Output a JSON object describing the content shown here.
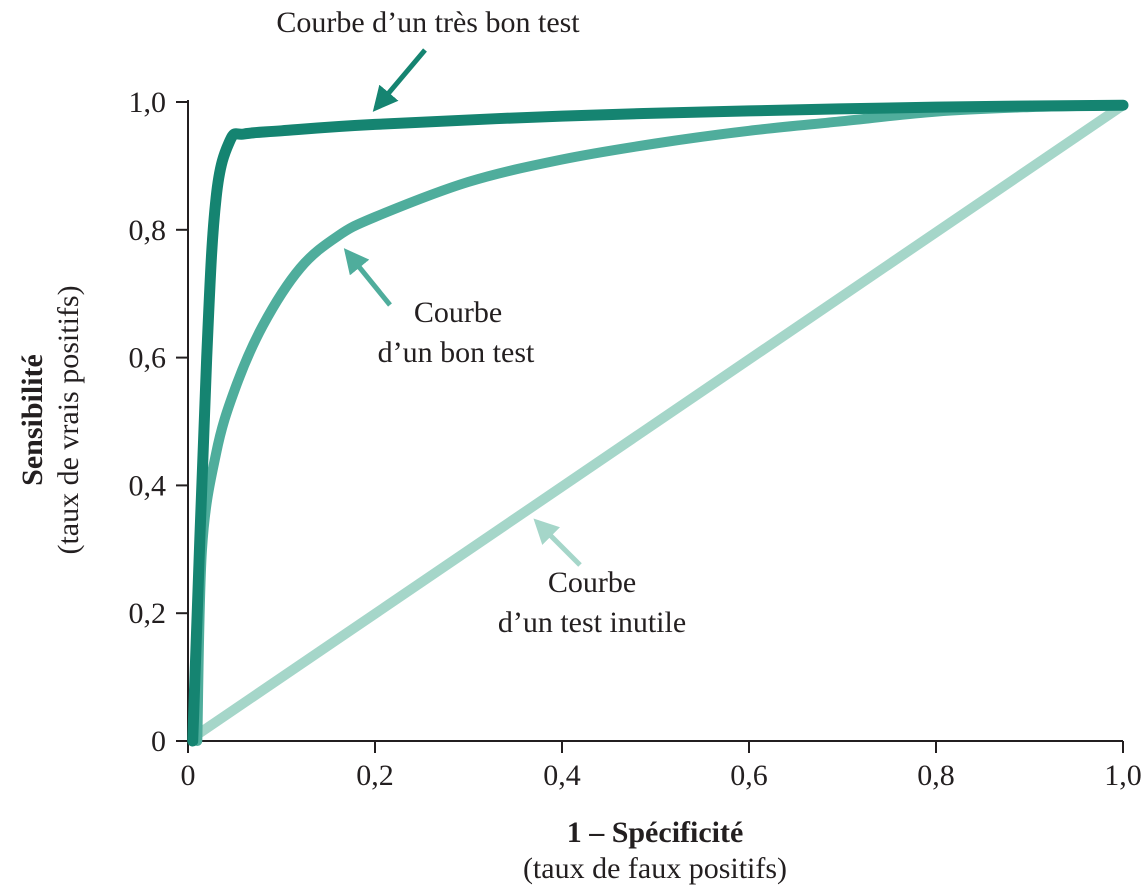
{
  "chart_data": {
    "type": "line",
    "xlabel": "1 – Spécificité",
    "xlabel_sub": "(taux de faux positifs)",
    "ylabel": "Sensibilité",
    "ylabel_sub": "(taux de vrais positifs)",
    "xlim": [
      0,
      1
    ],
    "ylim": [
      0,
      1
    ],
    "x_ticks": [
      {
        "value": 0,
        "label": "0"
      },
      {
        "value": 0.2,
        "label": "0,2"
      },
      {
        "value": 0.4,
        "label": "0,4"
      },
      {
        "value": 0.6,
        "label": "0,6"
      },
      {
        "value": 0.8,
        "label": "0,8"
      },
      {
        "value": 1.0,
        "label": "1,0"
      }
    ],
    "y_ticks": [
      {
        "value": 0,
        "label": "0"
      },
      {
        "value": 0.2,
        "label": "0,2"
      },
      {
        "value": 0.4,
        "label": "0,4"
      },
      {
        "value": 0.6,
        "label": "0,6"
      },
      {
        "value": 0.8,
        "label": "0,8"
      },
      {
        "value": 1.0,
        "label": "1,0"
      }
    ],
    "grid": false,
    "legend": "none",
    "series": [
      {
        "key": "useless",
        "color": "#a5d6c9",
        "points": [
          [
            0.01,
            0.01
          ],
          [
            1.0,
            0.995
          ]
        ]
      },
      {
        "key": "good",
        "color": "#4fad9c",
        "points": [
          [
            0.01,
            0.0
          ],
          [
            0.015,
            0.3
          ],
          [
            0.03,
            0.45
          ],
          [
            0.05,
            0.55
          ],
          [
            0.08,
            0.65
          ],
          [
            0.12,
            0.74
          ],
          [
            0.16,
            0.79
          ],
          [
            0.2,
            0.82
          ],
          [
            0.3,
            0.875
          ],
          [
            0.4,
            0.91
          ],
          [
            0.5,
            0.935
          ],
          [
            0.6,
            0.955
          ],
          [
            0.7,
            0.97
          ],
          [
            0.8,
            0.985
          ],
          [
            0.9,
            0.992
          ],
          [
            1.0,
            0.995
          ]
        ]
      },
      {
        "key": "very_good",
        "color": "#158471",
        "points": [
          [
            0.005,
            0.0
          ],
          [
            0.02,
            0.6
          ],
          [
            0.03,
            0.85
          ],
          [
            0.045,
            0.94
          ],
          [
            0.06,
            0.95
          ],
          [
            0.1,
            0.955
          ],
          [
            0.2,
            0.965
          ],
          [
            0.4,
            0.978
          ],
          [
            0.6,
            0.986
          ],
          [
            0.8,
            0.992
          ],
          [
            1.0,
            0.995
          ]
        ]
      }
    ],
    "annotations": [
      {
        "key": "very_good",
        "lines": [
          "Courbe d’un très bon test"
        ],
        "color": "#158471"
      },
      {
        "key": "good",
        "lines": [
          "Courbe",
          "d’un bon test"
        ],
        "color": "#4fad9c"
      },
      {
        "key": "useless",
        "lines": [
          "Courbe",
          "d’un test inutile"
        ],
        "color": "#a5d6c9"
      }
    ]
  }
}
